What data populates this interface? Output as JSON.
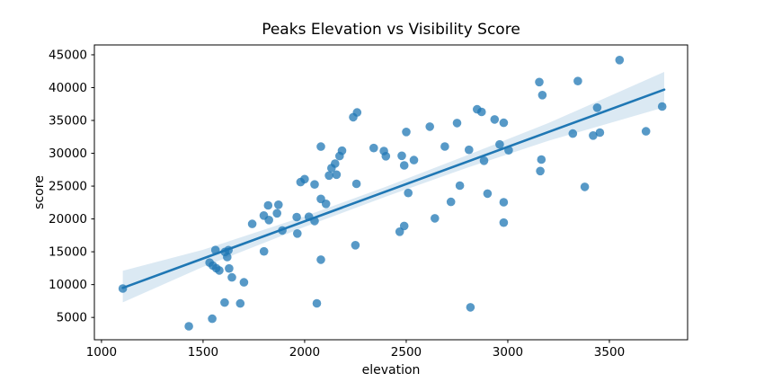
{
  "title": "Peaks Elevation vs Visibility Score",
  "colors": {
    "point": "#1f77b4",
    "line": "#1f77b4",
    "band": "#1f77b4",
    "spine": "#000000",
    "text": "#000000",
    "background": "#ffffff"
  },
  "chart_data": {
    "type": "scatter",
    "title": "Peaks Elevation vs Visibility Score",
    "xlabel": "elevation",
    "ylabel": "score",
    "xlim": [
      965,
      3885
    ],
    "ylim": [
      1600,
      46500
    ],
    "x_ticks": [
      1000,
      1500,
      2000,
      2500,
      3000,
      3500
    ],
    "y_ticks": [
      5000,
      10000,
      15000,
      20000,
      25000,
      30000,
      35000,
      40000,
      45000
    ],
    "grid": false,
    "legend": null,
    "points": [
      [
        1105,
        9400
      ],
      [
        1430,
        3650
      ],
      [
        1545,
        4800
      ],
      [
        1606,
        7270
      ],
      [
        1683,
        7130
      ],
      [
        2060,
        7150
      ],
      [
        1532,
        13350
      ],
      [
        1548,
        12900
      ],
      [
        1565,
        12500
      ],
      [
        1580,
        12150
      ],
      [
        1628,
        12460
      ],
      [
        1561,
        15260
      ],
      [
        1608,
        14980
      ],
      [
        1625,
        15250
      ],
      [
        1619,
        14200
      ],
      [
        1642,
        11100
      ],
      [
        1701,
        10350
      ],
      [
        1800,
        15050
      ],
      [
        2080,
        13800
      ],
      [
        2250,
        16000
      ],
      [
        1742,
        19250
      ],
      [
        1799,
        20520
      ],
      [
        1824,
        19830
      ],
      [
        1864,
        20860
      ],
      [
        1961,
        20290
      ],
      [
        2021,
        20330
      ],
      [
        2049,
        19690
      ],
      [
        1890,
        18240
      ],
      [
        1964,
        17780
      ],
      [
        1820,
        22060
      ],
      [
        1871,
        22160
      ],
      [
        2080,
        23050
      ],
      [
        2105,
        22300
      ],
      [
        1980,
        25610
      ],
      [
        2000,
        26060
      ],
      [
        2049,
        25250
      ],
      [
        2255,
        25350
      ],
      [
        2510,
        23950
      ],
      [
        2468,
        18050
      ],
      [
        2490,
        18930
      ],
      [
        2641,
        20100
      ],
      [
        2720,
        22600
      ],
      [
        2900,
        23860
      ],
      [
        2980,
        22540
      ],
      [
        2980,
        19440
      ],
      [
        2816,
        6540
      ],
      [
        2764,
        25080
      ],
      [
        2120,
        26610
      ],
      [
        2157,
        26750
      ],
      [
        2132,
        27750
      ],
      [
        2150,
        28430
      ],
      [
        2172,
        29580
      ],
      [
        2184,
        30390
      ],
      [
        2080,
        31020
      ],
      [
        2239,
        35490
      ],
      [
        2258,
        36220
      ],
      [
        2340,
        30800
      ],
      [
        2390,
        30350
      ],
      [
        2400,
        29550
      ],
      [
        2478,
        29620
      ],
      [
        2490,
        28160
      ],
      [
        2538,
        28960
      ],
      [
        2500,
        33250
      ],
      [
        2616,
        34050
      ],
      [
        2690,
        31030
      ],
      [
        2750,
        34600
      ],
      [
        2809,
        30530
      ],
      [
        2849,
        36700
      ],
      [
        2871,
        36300
      ],
      [
        2883,
        28870
      ],
      [
        2935,
        35150
      ],
      [
        2980,
        34650
      ],
      [
        2960,
        31350
      ],
      [
        3004,
        30450
      ],
      [
        3155,
        40850
      ],
      [
        3345,
        41000
      ],
      [
        3170,
        38860
      ],
      [
        3165,
        29050
      ],
      [
        3160,
        27300
      ],
      [
        3379,
        24880
      ],
      [
        3320,
        33000
      ],
      [
        3420,
        32700
      ],
      [
        3453,
        33160
      ],
      [
        3440,
        36950
      ],
      [
        3550,
        44200
      ],
      [
        3680,
        33350
      ],
      [
        3760,
        37120
      ]
    ],
    "regression_line": {
      "x": [
        1105,
        3770
      ],
      "y": [
        9500,
        39700
      ]
    },
    "confidence_band": {
      "x": [
        1105,
        1500,
        2000,
        2400,
        2800,
        3200,
        3770
      ],
      "upper": [
        12100,
        15300,
        20400,
        24900,
        29700,
        34600,
        42400
      ],
      "lower": [
        7300,
        12700,
        18800,
        23400,
        27800,
        31900,
        37000
      ]
    }
  }
}
